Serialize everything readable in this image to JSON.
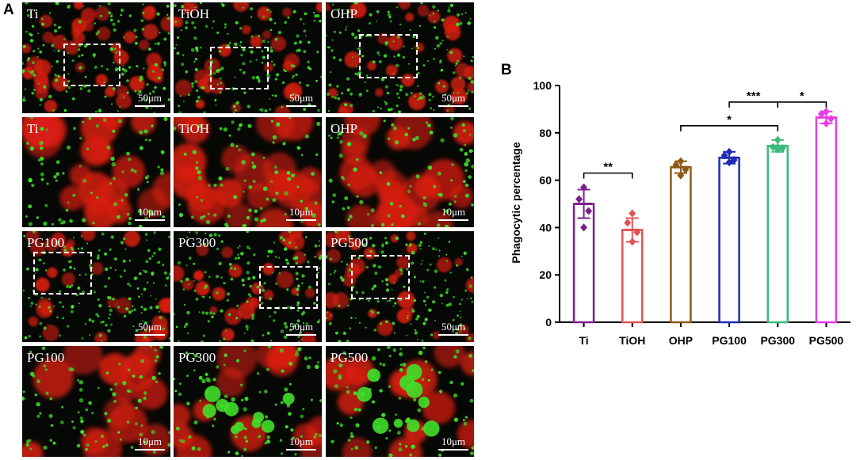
{
  "panel_a_label": "A",
  "panel_b_label": "B",
  "micrographs": [
    {
      "label": "Ti",
      "scale": "50μm",
      "zoom_box": true
    },
    {
      "label": "TiOH",
      "scale": "50μm",
      "zoom_box": true
    },
    {
      "label": "OHP",
      "scale": "50μm",
      "zoom_box": true
    },
    {
      "label": "Ti",
      "scale": "10μm",
      "zoom_box": false
    },
    {
      "label": "TiOH",
      "scale": "10μm",
      "zoom_box": false
    },
    {
      "label": "OHP",
      "scale": "10μm",
      "zoom_box": false
    },
    {
      "label": "PG100",
      "scale": "50μm",
      "zoom_box": true
    },
    {
      "label": "PG300",
      "scale": "50μm",
      "zoom_box": true
    },
    {
      "label": "PG500",
      "scale": "50μm",
      "zoom_box": true
    },
    {
      "label": "PG100",
      "scale": "10μm",
      "zoom_box": false
    },
    {
      "label": "PG300",
      "scale": "10μm",
      "zoom_box": false
    },
    {
      "label": "PG500",
      "scale": "10μm",
      "zoom_box": false
    }
  ],
  "colors": {
    "cells": "#d81e12",
    "bacteria": "#3fe02a",
    "background": "#050805"
  },
  "chart_data": {
    "type": "bar",
    "title": "",
    "xlabel": "",
    "ylabel": "Phagocytic percentage",
    "ylim": [
      0,
      100
    ],
    "yticks": [
      0,
      20,
      40,
      60,
      80,
      100
    ],
    "grid": false,
    "categories": [
      "Ti",
      "TiOH",
      "OHP",
      "PG100",
      "PG300",
      "PG500"
    ],
    "values": [
      50,
      39,
      65.5,
      69.5,
      74.5,
      86.5
    ],
    "errors": [
      6,
      5,
      2.5,
      2.5,
      2.5,
      2.5
    ],
    "points": [
      [
        57,
        52,
        47,
        40
      ],
      [
        46,
        42,
        38,
        34
      ],
      [
        68,
        66.5,
        64.5,
        62
      ],
      [
        72,
        70.5,
        68.5,
        67.5
      ],
      [
        77,
        74,
        73.5,
        73
      ],
      [
        89,
        88,
        86,
        84
      ]
    ],
    "bar_colors": [
      "#7a1f8f",
      "#e05454",
      "#8b5a17",
      "#1f2ab5",
      "#3cb979",
      "#e83de8"
    ],
    "significance": [
      {
        "from": "Ti",
        "to": "TiOH",
        "label": "**",
        "y": 63
      },
      {
        "from": "OHP",
        "to": "PG300",
        "label": "*",
        "y": 83
      },
      {
        "from": "PG100",
        "to": "PG300",
        "label": "***",
        "y": 93
      },
      {
        "from": "PG300",
        "to": "PG500",
        "label": "*",
        "y": 93
      }
    ]
  }
}
